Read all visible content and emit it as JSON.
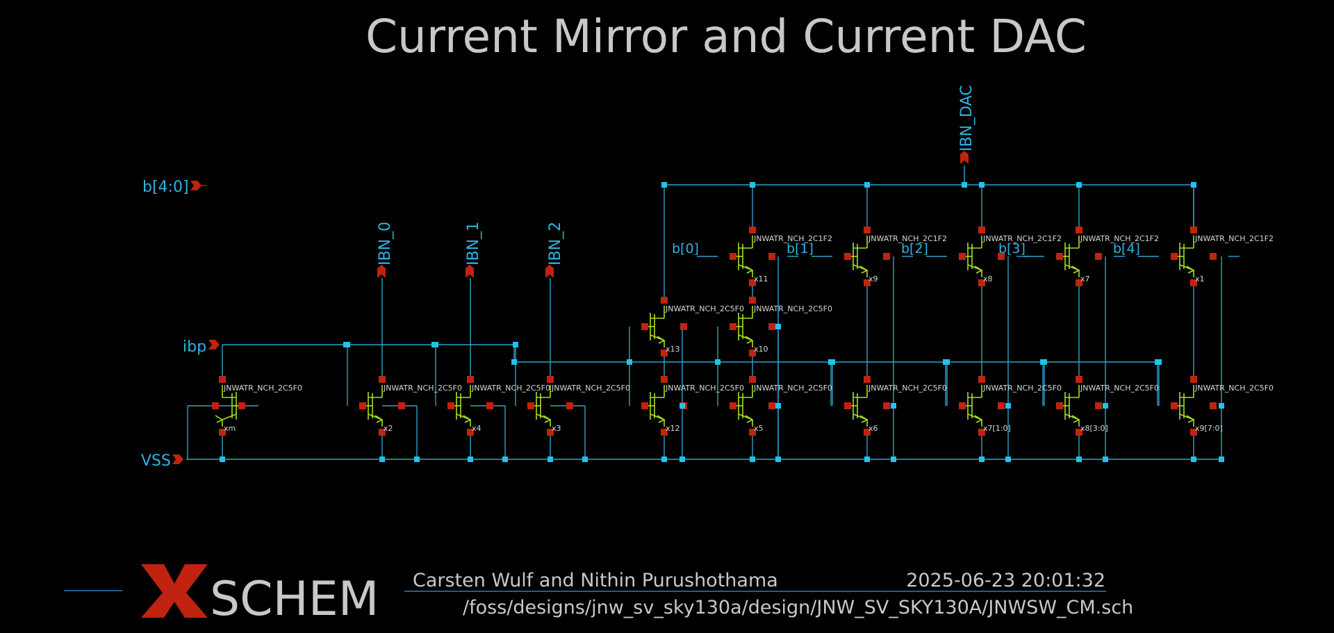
{
  "title": "Current Mirror and Current DAC",
  "pins": {
    "bus": "b[4:0]",
    "ibp": "ibp",
    "vss": "VSS",
    "out0": "IBN_0",
    "out1": "IBN_1",
    "out2": "IBN_2",
    "dac": "IBN_DAC"
  },
  "bit_labels": [
    "b[0]",
    "b[1]",
    "b[2]",
    "b[3]",
    "b[4]"
  ],
  "devices": {
    "model_cm": "JNWATR_NCH_2C5F0",
    "model_sw": "JNWATR_NCH_2C1F2",
    "mirror_row": [
      "xm",
      "x2",
      "x4",
      "x3",
      "x12",
      "x5",
      "x6",
      "x7[1:0]",
      "x8[3:0]",
      "x9[7:0]"
    ],
    "cascode_row": [
      "x13",
      "x10"
    ],
    "switch_row": [
      "x11",
      "x9",
      "x8",
      "x7",
      "x1"
    ]
  },
  "footer": {
    "logo_letter": "X",
    "logo_text": "SCHEM",
    "authors": "Carsten Wulf and Nithin Purushothama",
    "datetime": "2025-06-23  20:01:32",
    "path": "/foss/designs/jnw_sv_sky130a/design/JNW_SV_SKY130A/JNWSW_CM.sch"
  },
  "colors": {
    "background": "#000000",
    "wire": "#2ea4cc",
    "pin": "#c0230f",
    "transistor": "#a6e21e",
    "label": "#2fb3e0",
    "text": "#c8c8c8"
  }
}
